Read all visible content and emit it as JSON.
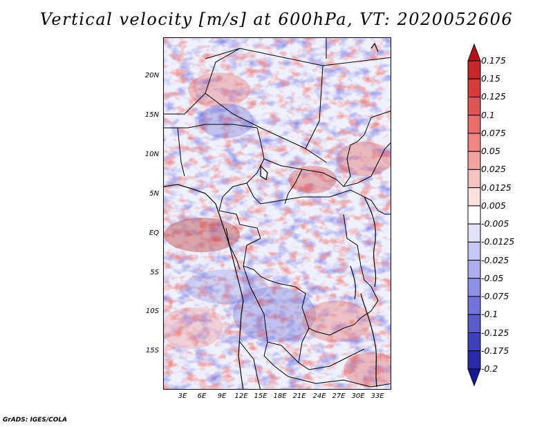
{
  "title": "Vertical velocity [m/s] at 600hPa, VT: 2020052606",
  "map": {
    "lat_ticks": [
      "20N",
      "15N",
      "10N",
      "5N",
      "EQ",
      "5S",
      "10S",
      "15S"
    ],
    "lon_ticks": [
      "3E",
      "6E",
      "9E",
      "12E",
      "15E",
      "18E",
      "21E",
      "24E",
      "27E",
      "30E",
      "33E"
    ],
    "field": "vertical velocity",
    "features": [
      "country borders",
      "coastlines",
      "lakes"
    ]
  },
  "colorbar": {
    "labels": [
      "0.175",
      "0.15",
      "0.125",
      "0.1",
      "0.075",
      "0.05",
      "0.025",
      "0.0125",
      "0.005",
      "-0.005",
      "-0.0125",
      "-0.025",
      "-0.05",
      "-0.075",
      "-0.1",
      "-0.125",
      "-0.175",
      "-0.2"
    ],
    "colors": [
      "#b01518",
      "#c42828",
      "#d43c3c",
      "#e05454",
      "#e86c6c",
      "#ee8686",
      "#f2a2a2",
      "#f6c2c2",
      "#fbe0e0",
      "#ffffff",
      "#e2e2f8",
      "#c8c8f4",
      "#acacee",
      "#9090e4",
      "#7474d8",
      "#5a5acc",
      "#4040bc",
      "#2a2aa8",
      "#181894"
    ]
  },
  "credit": "GrADS: IGES/COLA"
}
